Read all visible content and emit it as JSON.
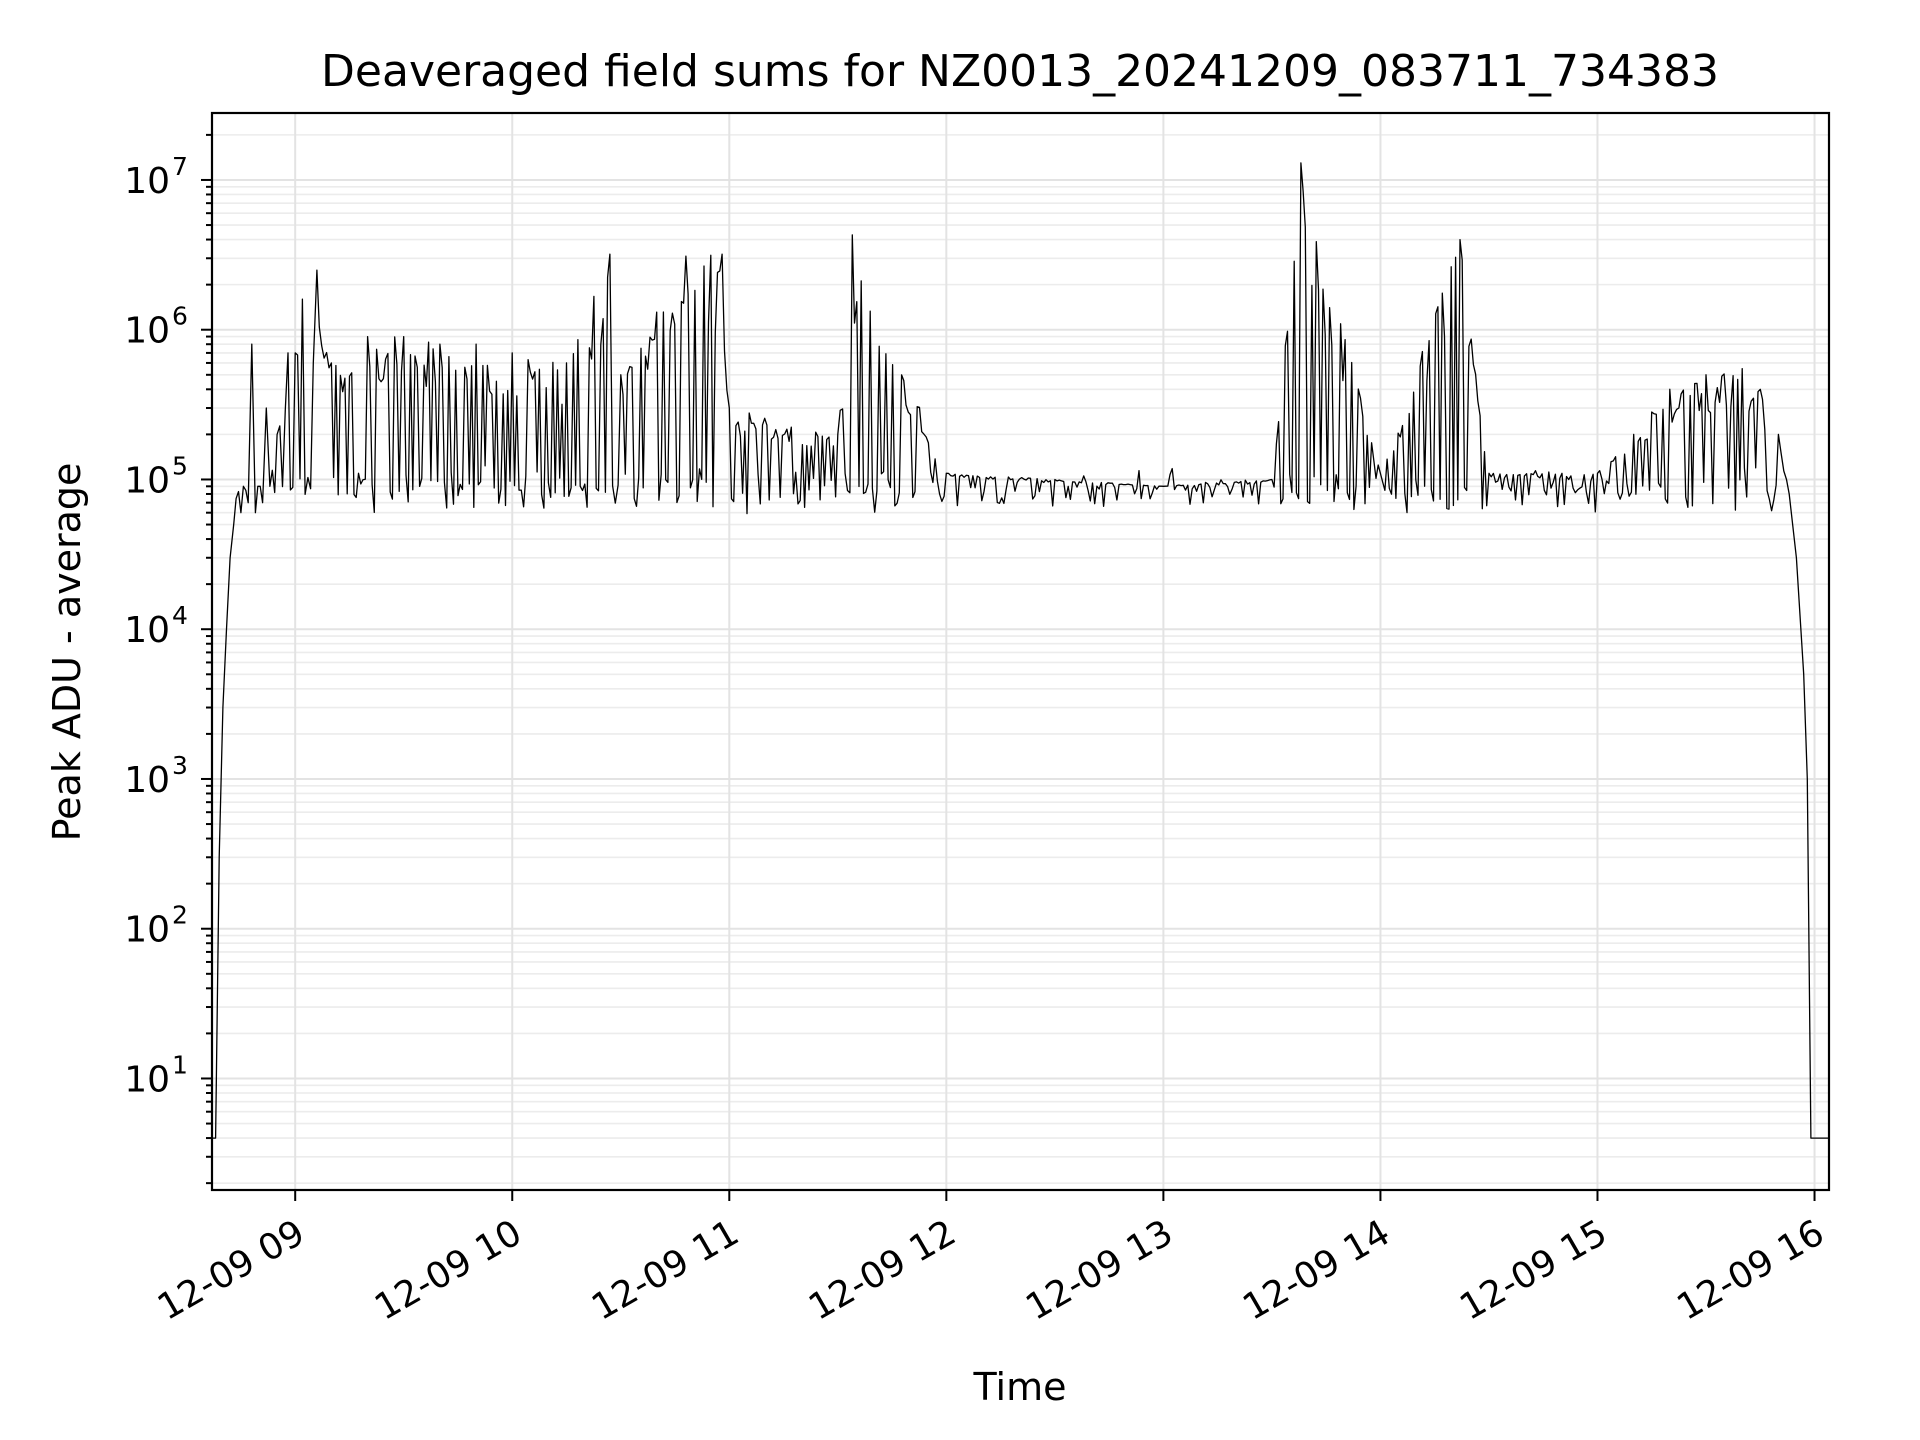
{
  "chart_data": {
    "type": "line",
    "title": "Deaveraged field sums for NZ0013_20241209_083711_734383",
    "xlabel": "Time",
    "ylabel": "Peak ADU - average",
    "x_axis": {
      "type": "time",
      "range": [
        "2024-12-09 08:37",
        "2024-12-09 16:04"
      ],
      "ticks": [
        {
          "value": "2024-12-09 09:00",
          "label": "12-09 09"
        },
        {
          "value": "2024-12-09 10:00",
          "label": "12-09 10"
        },
        {
          "value": "2024-12-09 11:00",
          "label": "12-09 11"
        },
        {
          "value": "2024-12-09 12:00",
          "label": "12-09 12"
        },
        {
          "value": "2024-12-09 13:00",
          "label": "12-09 13"
        },
        {
          "value": "2024-12-09 14:00",
          "label": "12-09 14"
        },
        {
          "value": "2024-12-09 15:00",
          "label": "12-09 15"
        },
        {
          "value": "2024-12-09 16:00",
          "label": "12-09 16"
        }
      ]
    },
    "y_axis": {
      "scale": "log",
      "range": [
        1.8,
        28000000
      ],
      "ticks": [
        {
          "value": 10,
          "base": "10",
          "exp": "1"
        },
        {
          "value": 100,
          "base": "10",
          "exp": "2"
        },
        {
          "value": 1000,
          "base": "10",
          "exp": "3"
        },
        {
          "value": 10000,
          "base": "10",
          "exp": "4"
        },
        {
          "value": 100000,
          "base": "10",
          "exp": "5"
        },
        {
          "value": 1000000,
          "base": "10",
          "exp": "6"
        },
        {
          "value": 10000000,
          "base": "10",
          "exp": "7"
        }
      ]
    },
    "grid": true,
    "series": [
      {
        "color": "#000000",
        "points": [
          [
            "2024-12-09 08:37",
            4
          ],
          [
            "2024-12-09 08:38",
            4
          ],
          [
            "2024-12-09 08:39",
            300
          ],
          [
            "2024-12-09 08:40",
            3000
          ],
          [
            "2024-12-09 08:41",
            10000
          ],
          [
            "2024-12-09 08:42",
            30000
          ],
          [
            "2024-12-09 08:43",
            50000
          ],
          [
            "2024-12-09 08:45",
            60000
          ],
          [
            "2024-12-09 08:47",
            70000
          ],
          [
            "2024-12-09 08:48",
            800000
          ],
          [
            "2024-12-09 08:49",
            60000
          ],
          [
            "2024-12-09 08:51",
            70000
          ],
          [
            "2024-12-09 08:52",
            300000
          ],
          [
            "2024-12-09 08:53",
            90000
          ],
          [
            "2024-12-09 08:55",
            200000
          ],
          [
            "2024-12-09 08:58",
            700000
          ],
          [
            "2024-12-09 09:00",
            700000
          ],
          [
            "2024-12-09 09:02",
            1600000
          ],
          [
            "2024-12-09 09:05",
            600000
          ],
          [
            "2024-12-09 09:06",
            2500000
          ],
          [
            "2024-12-09 09:10",
            600000
          ],
          [
            "2024-12-09 09:20",
            900000
          ],
          [
            "2024-12-09 09:30",
            900000
          ],
          [
            "2024-12-09 09:40",
            800000
          ],
          [
            "2024-12-09 09:50",
            800000
          ],
          [
            "2024-12-09 10:00",
            700000
          ],
          [
            "2024-12-09 10:15",
            600000
          ],
          [
            "2024-12-09 10:27",
            3200000
          ],
          [
            "2024-12-09 10:30",
            500000
          ],
          [
            "2024-12-09 10:48",
            3100000
          ],
          [
            "2024-12-09 10:58",
            3200000
          ],
          [
            "2024-12-09 11:00",
            300000
          ],
          [
            "2024-12-09 11:30",
            200000
          ],
          [
            "2024-12-09 11:34",
            4300000
          ],
          [
            "2024-12-09 12:00",
            110000
          ],
          [
            "2024-12-09 12:30",
            100000
          ],
          [
            "2024-12-09 13:00",
            90000
          ],
          [
            "2024-12-09 13:30",
            100000
          ],
          [
            "2024-12-09 13:38",
            13000000
          ],
          [
            "2024-12-09 14:00",
            110000
          ],
          [
            "2024-12-09 14:22",
            4000000
          ],
          [
            "2024-12-09 14:30",
            110000
          ],
          [
            "2024-12-09 15:00",
            110000
          ],
          [
            "2024-12-09 15:10",
            200000
          ],
          [
            "2024-12-09 15:20",
            400000
          ],
          [
            "2024-12-09 15:30",
            500000
          ],
          [
            "2024-12-09 15:40",
            550000
          ],
          [
            "2024-12-09 15:45",
            400000
          ],
          [
            "2024-12-09 15:50",
            200000
          ],
          [
            "2024-12-09 15:53",
            80000
          ],
          [
            "2024-12-09 15:55",
            30000
          ],
          [
            "2024-12-09 15:57",
            5000
          ],
          [
            "2024-12-09 15:58",
            1000
          ],
          [
            "2024-12-09 15:59",
            4
          ],
          [
            "2024-12-09 16:04",
            4
          ]
        ]
      }
    ]
  }
}
